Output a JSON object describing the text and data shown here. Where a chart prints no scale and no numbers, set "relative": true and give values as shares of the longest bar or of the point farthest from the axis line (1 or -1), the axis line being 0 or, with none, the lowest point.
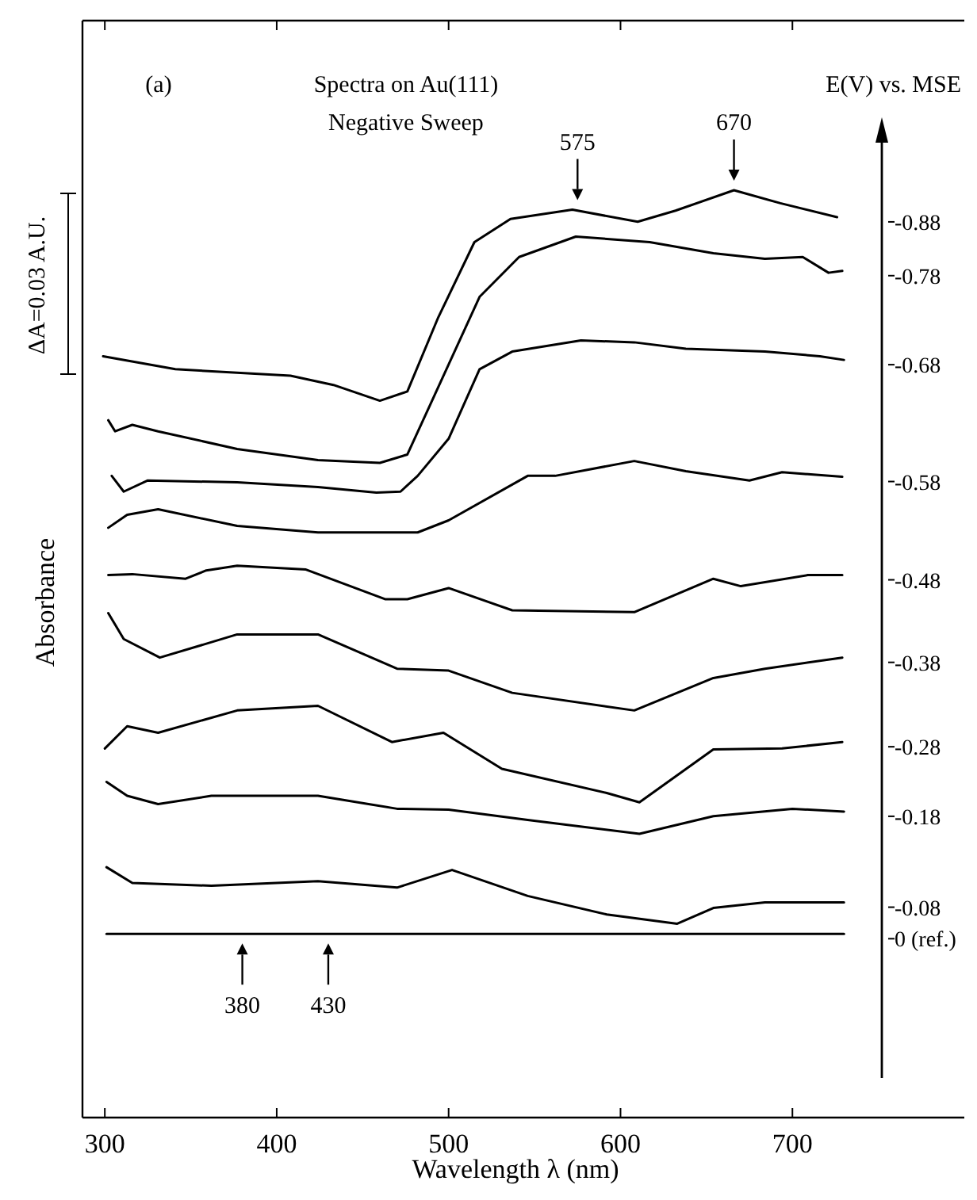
{
  "chart_data": {
    "type": "line",
    "relative": true,
    "title": "Spectra on Au(111)",
    "subtitle": "Negative Sweep",
    "xlabel": "Wavelength λ (nm)",
    "ylabel": "Absorbance",
    "legend_title": "E(V) vs. MSE",
    "legend": "right",
    "xlim": [
      287,
      800
    ],
    "xticks": [
      300,
      400,
      500,
      600,
      700
    ],
    "annotations": [
      "(a)",
      "ΔA=0.03 A.U.",
      {
        "text": "575",
        "x": 575,
        "y": 0.979
      },
      {
        "text": "670",
        "x": 666,
        "y": 1.0
      },
      {
        "text": "380",
        "x": 380,
        "y": 0.198
      },
      {
        "text": "430",
        "x": 430,
        "y": 0.198
      }
    ],
    "series": [
      {
        "name": "-0.88",
        "color": "#000000",
        "x": [
          299,
          341,
          408,
          433,
          460,
          476,
          494,
          515,
          536,
          572,
          610,
          632,
          666,
          693,
          726
        ],
        "values": [
          0.821,
          0.807,
          0.8,
          0.79,
          0.773,
          0.783,
          0.863,
          0.944,
          0.969,
          0.979,
          0.966,
          0.978,
          1.0,
          0.986,
          0.971
        ]
      },
      {
        "name": "-0.78",
        "color": "#000000",
        "x": [
          302,
          306,
          316,
          331,
          377,
          424,
          460,
          476,
          500,
          518,
          541,
          574,
          617,
          654,
          684,
          706,
          721,
          729
        ],
        "values": [
          0.752,
          0.74,
          0.747,
          0.74,
          0.721,
          0.709,
          0.706,
          0.715,
          0.812,
          0.885,
          0.928,
          0.95,
          0.944,
          0.932,
          0.926,
          0.928,
          0.911,
          0.913
        ]
      },
      {
        "name": "-0.68",
        "color": "#000000",
        "x": [
          304,
          311,
          325,
          377,
          424,
          458,
          472,
          482,
          500,
          518,
          537,
          577,
          608,
          638,
          684,
          716,
          730
        ],
        "values": [
          0.692,
          0.675,
          0.687,
          0.685,
          0.68,
          0.674,
          0.675,
          0.692,
          0.732,
          0.807,
          0.826,
          0.838,
          0.836,
          0.829,
          0.826,
          0.821,
          0.817
        ]
      },
      {
        "name": "-0.58",
        "color": "#000000",
        "x": [
          302,
          313,
          331,
          377,
          424,
          482,
          500,
          546,
          562,
          608,
          638,
          675,
          694,
          729
        ],
        "values": [
          0.636,
          0.65,
          0.656,
          0.638,
          0.631,
          0.631,
          0.644,
          0.692,
          0.692,
          0.708,
          0.697,
          0.687,
          0.696,
          0.691
        ]
      },
      {
        "name": "-0.48",
        "color": "#000000",
        "x": [
          302,
          316,
          347,
          359,
          377,
          417,
          463,
          476,
          500,
          537,
          608,
          654,
          670,
          709,
          729
        ],
        "values": [
          0.585,
          0.586,
          0.581,
          0.59,
          0.595,
          0.591,
          0.559,
          0.559,
          0.571,
          0.547,
          0.545,
          0.581,
          0.573,
          0.585,
          0.585
        ]
      },
      {
        "name": "-0.38",
        "color": "#000000",
        "x": [
          302,
          311,
          332,
          377,
          424,
          470,
          500,
          537,
          608,
          654,
          684,
          729
        ],
        "values": [
          0.544,
          0.516,
          0.496,
          0.521,
          0.521,
          0.484,
          0.482,
          0.458,
          0.439,
          0.474,
          0.484,
          0.496
        ]
      },
      {
        "name": "-0.28",
        "color": "#000000",
        "x": [
          300,
          313,
          331,
          377,
          424,
          467,
          497,
          531,
          592,
          611,
          654,
          694,
          729
        ],
        "values": [
          0.398,
          0.422,
          0.415,
          0.439,
          0.444,
          0.405,
          0.415,
          0.376,
          0.35,
          0.34,
          0.397,
          0.398,
          0.405
        ]
      },
      {
        "name": "-0.18",
        "color": "#000000",
        "x": [
          301,
          313,
          331,
          362,
          424,
          470,
          500,
          546,
          611,
          654,
          700,
          730
        ],
        "values": [
          0.362,
          0.347,
          0.338,
          0.347,
          0.347,
          0.333,
          0.332,
          0.321,
          0.306,
          0.325,
          0.333,
          0.33
        ]
      },
      {
        "name": "-0.08",
        "color": "#000000",
        "x": [
          301,
          316,
          362,
          424,
          470,
          502,
          546,
          592,
          633,
          654,
          684,
          730
        ],
        "values": [
          0.27,
          0.253,
          0.25,
          0.255,
          0.248,
          0.267,
          0.239,
          0.219,
          0.209,
          0.226,
          0.232,
          0.232
        ]
      },
      {
        "name": "0 (ref.)",
        "color": "#000000",
        "x": [
          301,
          730
        ],
        "values": [
          0.198,
          0.198
        ]
      }
    ]
  }
}
